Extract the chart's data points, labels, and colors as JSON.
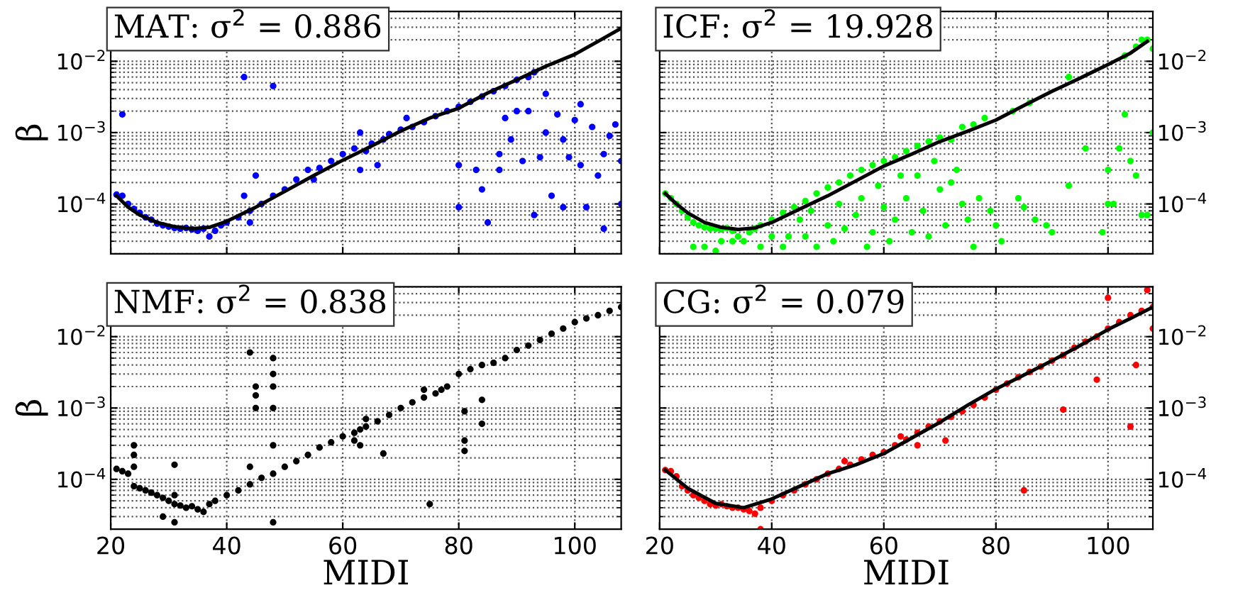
{
  "chart_data": [
    {
      "type": "scatter",
      "title": "MAT: σ$^{2}$ = 0.886",
      "ylabel": "β",
      "log": "y",
      "grid": true,
      "tick_labels": "y",
      "xlim": [
        20,
        108
      ],
      "ylim": [
        2e-05,
        0.05
      ],
      "xticks": [
        {
          "value": 20,
          "label": null
        },
        {
          "value": 40,
          "label": null
        },
        {
          "value": 60,
          "label": null
        },
        {
          "value": 80,
          "label": null
        },
        {
          "value": 100,
          "label": null
        }
      ],
      "yticks": [
        {
          "value": 0.0001,
          "label": "10$^{−4}$"
        },
        {
          "value": 0.001,
          "label": "10$^{−3}$"
        },
        {
          "value": 0.01,
          "label": "10$^{−2}$"
        }
      ],
      "series": [
        {
          "marker": "circle",
          "color": "#0000ff",
          "x": [
            21,
            22,
            23,
            24,
            25,
            26,
            27,
            28,
            29,
            30,
            31,
            32,
            33,
            34,
            35,
            36,
            37,
            38,
            39,
            40,
            42,
            44,
            46,
            48,
            50,
            52,
            54,
            55,
            56,
            58,
            60,
            62,
            63,
            64,
            65,
            66,
            67,
            68,
            70,
            71,
            72,
            74,
            76,
            78,
            80,
            82,
            84,
            86,
            88,
            90,
            92,
            93,
            22,
            43,
            48,
            43,
            45,
            44,
            63,
            80,
            80,
            83,
            84,
            85,
            87,
            87,
            88,
            89,
            90,
            91,
            92,
            93,
            94,
            95,
            95,
            96,
            97,
            98,
            98,
            99,
            100,
            101,
            101,
            102,
            103,
            104,
            105,
            105,
            106,
            107,
            108,
            108
          ],
          "values": [
            0.000135,
            0.00013,
            0.0001,
            8.5e-05,
            7.5e-05,
            6.5e-05,
            6e-05,
            5.3e-05,
            5e-05,
            4.8e-05,
            4.6e-05,
            4.5e-05,
            4.6e-05,
            4.4e-05,
            4.2e-05,
            4.5e-05,
            3.5e-05,
            4.2e-05,
            5e-05,
            5.5e-05,
            6.5e-05,
            8e-05,
            0.0001,
            0.00013,
            0.00016,
            0.00022,
            0.0003,
            0.00022,
            0.00032,
            0.0004,
            0.0005,
            0.0006,
            0.001,
            0.00055,
            0.0007,
            0.00035,
            0.0008,
            0.00095,
            0.0011,
            0.0016,
            0.0012,
            0.0014,
            0.0017,
            0.002,
            0.0023,
            0.0027,
            0.0032,
            0.0038,
            0.0045,
            0.0055,
            0.006,
            0.007,
            0.0018,
            0.006,
            0.0045,
            0.00013,
            0.00025,
            5.5e-05,
            0.0003,
            9e-05,
            0.00035,
            0.0003,
            0.00016,
            5.5e-05,
            0.0005,
            0.0003,
            0.0016,
            0.0008,
            0.002,
            0.0004,
            0.002,
            7e-05,
            0.00045,
            0.001,
            0.0035,
            0.00013,
            0.0018,
            0.0008,
            9e-05,
            0.00045,
            0.0015,
            0.0025,
            0.00035,
            9e-05,
            0.0012,
            0.00025,
            4.5e-05,
            0.0005,
            0.0009,
            0.0013,
            0.0004,
            0.0001
          ]
        },
        {
          "type": "line",
          "color": "#000000",
          "x": [
            21,
            23,
            25,
            28,
            31,
            34,
            37,
            40,
            45,
            50,
            55,
            60,
            65,
            70,
            75,
            80,
            85,
            90,
            95,
            100,
            104,
            108
          ],
          "values": [
            0.00013,
            9e-05,
            7e-05,
            5.5e-05,
            4.8e-05,
            4.5e-05,
            4.7e-05,
            5.7e-05,
            9e-05,
            0.00015,
            0.00025,
            0.00041,
            0.00065,
            0.00105,
            0.0016,
            0.0022,
            0.0036,
            0.0055,
            0.0085,
            0.0125,
            0.019,
            0.029
          ]
        }
      ]
    },
    {
      "type": "scatter",
      "title": "ICF: σ$^{2}$ = 19.928",
      "log": "y",
      "grid": true,
      "tick_labels": "y",
      "xlim": [
        20,
        108
      ],
      "ylim": [
        2e-05,
        0.05
      ],
      "xticks": [
        {
          "value": 20,
          "label": null
        },
        {
          "value": 40,
          "label": null
        },
        {
          "value": 60,
          "label": null
        },
        {
          "value": 80,
          "label": null
        },
        {
          "value": 100,
          "label": null
        }
      ],
      "yticks": [
        {
          "value": 0.0001,
          "label": "10$^{−4}$"
        },
        {
          "value": 0.001,
          "label": "10$^{−3}$"
        },
        {
          "value": 0.01,
          "label": "10$^{−2}$"
        }
      ],
      "series": [
        {
          "marker": "circle",
          "color": "#00ff00",
          "x": [
            21,
            22,
            23,
            24,
            25,
            26,
            27,
            28,
            29,
            30,
            31,
            32,
            33,
            34,
            35,
            36,
            37,
            38,
            40,
            42,
            44,
            46,
            48,
            50,
            52,
            54,
            56,
            58,
            60,
            62,
            64,
            66,
            68,
            70,
            72,
            74,
            76,
            78,
            83,
            86,
            93,
            103,
            105,
            106,
            107,
            108,
            26,
            28,
            30,
            31,
            33,
            38,
            40,
            42,
            43,
            45,
            46,
            47,
            48,
            50,
            51,
            52,
            53,
            55,
            56,
            57,
            58,
            59,
            60,
            61,
            62,
            63,
            64,
            65,
            66,
            67,
            68,
            69,
            70,
            71,
            72,
            73,
            74,
            75,
            76,
            77,
            79,
            80,
            81,
            84,
            85,
            87,
            89,
            90,
            93,
            96,
            99,
            100,
            100,
            101,
            102,
            103,
            104,
            105,
            106,
            107,
            108
          ],
          "values": [
            0.00014,
            0.00012,
            0.0001,
            8e-05,
            6.5e-05,
            5.5e-05,
            5e-05,
            4.7e-05,
            4.5e-05,
            4.5e-05,
            4.4e-05,
            4.6e-05,
            4.2e-05,
            3.5e-05,
            3e-05,
            4e-05,
            4.5e-05,
            5e-05,
            6e-05,
            7.5e-05,
            9e-05,
            0.00011,
            0.00014,
            0.00017,
            0.0002,
            0.00025,
            0.0003,
            0.00035,
            0.0004,
            0.00045,
            0.00055,
            0.00065,
            0.00075,
            0.00085,
            0.0008,
            0.0012,
            0.0013,
            0.0016,
            0.002,
            0.0026,
            0.006,
            0.012,
            0.016,
            0.02,
            0.02,
            0.015,
            2.5e-05,
            2.5e-05,
            2.2e-05,
            3e-05,
            3e-05,
            2.5e-05,
            3.5e-05,
            2.5e-05,
            3.5e-05,
            6e-05,
            3.5e-05,
            8e-05,
            2.5e-05,
            5e-05,
            3e-05,
            0.0001,
            4.5e-05,
            7e-05,
            0.00012,
            2.5e-05,
            4e-05,
            0.00018,
            9e-05,
            3e-05,
            6e-05,
            0.00025,
            0.00012,
            4e-05,
            0.00025,
            8e-05,
            3.5e-05,
            0.0004,
            0.00016,
            5e-05,
            0.0002,
            0.0003,
            0.0001,
            6e-05,
            2.5e-05,
            0.00012,
            8e-05,
            5e-05,
            3e-05,
            0.00012,
            9e-05,
            6e-05,
            5e-05,
            4e-05,
            0.00018,
            0.0006,
            4e-05,
            0.0001,
            0.0003,
            0.0001,
            0.0006,
            0.0018,
            0.0004,
            0.00025,
            7e-05,
            7e-05,
            0.001
          ]
        },
        {
          "type": "line",
          "color": "#000000",
          "x": [
            21,
            23,
            25,
            28,
            31,
            34,
            37,
            40,
            45,
            50,
            55,
            60,
            65,
            70,
            75,
            80,
            85,
            90,
            95,
            100,
            104,
            107
          ],
          "values": [
            0.00014,
            0.0001,
            7.5e-05,
            5.5e-05,
            4.7e-05,
            4.4e-05,
            4.6e-05,
            5.5e-05,
            8.5e-05,
            0.00013,
            0.00021,
            0.00034,
            0.0005,
            0.00075,
            0.00105,
            0.0015,
            0.0024,
            0.0038,
            0.0058,
            0.009,
            0.013,
            0.019
          ]
        }
      ]
    },
    {
      "type": "scatter",
      "title": "NMF: σ$^{2}$ = 0.838",
      "xlabel": "MIDI",
      "ylabel": "β",
      "log": "y",
      "grid": true,
      "xlim": [
        20,
        108
      ],
      "ylim": [
        2e-05,
        0.05
      ],
      "xticks": [
        20,
        40,
        60,
        80,
        100
      ],
      "yticks": [
        {
          "value": 0.0001,
          "label": "10$^{−4}$"
        },
        {
          "value": 0.001,
          "label": "10$^{−3}$"
        },
        {
          "value": 0.01,
          "label": "10$^{−2}$"
        }
      ],
      "series": [
        {
          "marker": "circle",
          "color": "#000000",
          "x": [
            21,
            22,
            23,
            24,
            25,
            26,
            27,
            28,
            29,
            30,
            31,
            32,
            33,
            34,
            35,
            36,
            37,
            38,
            40,
            42,
            44,
            46,
            48,
            50,
            52,
            54,
            56,
            58,
            60,
            62,
            64,
            66,
            68,
            70,
            72,
            74,
            76,
            78,
            80,
            82,
            84,
            86,
            88,
            90,
            92,
            94,
            96,
            98,
            100,
            102,
            104,
            106,
            108,
            24,
            24,
            24,
            31,
            31,
            31,
            29,
            44,
            45,
            45,
            45,
            48,
            48,
            48,
            48,
            48,
            48,
            44,
            62,
            63,
            63,
            64,
            67,
            74,
            75,
            77,
            81,
            81,
            81,
            84,
            84
          ],
          "values": [
            0.00014,
            0.00013,
            0.00012,
            8e-05,
            7.5e-05,
            7e-05,
            6.5e-05,
            6e-05,
            5.5e-05,
            5e-05,
            4.5e-05,
            4.3e-05,
            4e-05,
            4.2e-05,
            3.8e-05,
            3.5e-05,
            4.5e-05,
            5e-05,
            6e-05,
            7e-05,
            8.5e-05,
            0.000105,
            0.00012,
            0.00015,
            0.00018,
            0.00022,
            0.00028,
            0.00033,
            0.0004,
            0.00045,
            0.00055,
            0.00065,
            0.0008,
            0.001,
            0.0012,
            0.0014,
            0.0016,
            0.002,
            0.003,
            0.0035,
            0.004,
            0.0043,
            0.005,
            0.0065,
            0.0075,
            0.009,
            0.011,
            0.013,
            0.016,
            0.018,
            0.02,
            0.023,
            0.026,
            0.00015,
            0.00022,
            0.0003,
            2.5e-05,
            6e-05,
            0.00016,
            3e-05,
            0.006,
            0.001,
            0.0015,
            0.002,
            2.5e-05,
            0.0003,
            0.001,
            0.002,
            0.003,
            0.005,
            0.00015,
            0.00035,
            0.0005,
            0.0003,
            0.0007,
            0.00023,
            0.0018,
            4.5e-05,
            0.0018,
            0.0009,
            0.00035,
            0.00025,
            0.0013,
            0.0006
          ]
        }
      ]
    },
    {
      "type": "scatter",
      "title": "CG: σ$^{2}$ = 0.079",
      "xlabel": "MIDI",
      "log": "y",
      "grid": true,
      "xlim": [
        20,
        108
      ],
      "ylim": [
        2e-05,
        0.05
      ],
      "xticks": [
        20,
        40,
        60,
        80,
        100
      ],
      "yticks": [
        {
          "value": 0.0001,
          "label": "10$^{−4}$"
        },
        {
          "value": 0.001,
          "label": "10$^{−3}$"
        },
        {
          "value": 0.01,
          "label": "10$^{−2}$"
        }
      ],
      "series": [
        {
          "marker": "circle",
          "color": "#ff0000",
          "x": [
            21,
            22,
            23,
            24,
            25,
            26,
            27,
            28,
            29,
            30,
            31,
            32,
            33,
            34,
            35,
            36,
            37,
            38,
            40,
            42,
            44,
            46,
            48,
            50,
            52,
            53,
            54,
            56,
            58,
            60,
            62,
            63,
            64,
            66,
            68,
            70,
            71,
            72,
            74,
            76,
            78,
            80,
            82,
            84,
            86,
            88,
            90,
            92,
            94,
            96,
            98,
            100,
            102,
            104,
            106,
            108,
            38,
            66,
            85,
            92,
            98,
            104,
            105,
            108,
            107,
            100
          ],
          "values": [
            0.000135,
            0.00013,
            0.00011,
            8e-05,
            7e-05,
            6e-05,
            5.5e-05,
            5e-05,
            4.5e-05,
            4.3e-05,
            4.5e-05,
            4.2e-05,
            4e-05,
            4e-05,
            3.8e-05,
            3.6e-05,
            3.3e-05,
            4e-05,
            5e-05,
            6e-05,
            7e-05,
            8.5e-05,
            0.0001,
            0.00012,
            0.00014,
            0.00018,
            0.00016,
            0.00019,
            0.00022,
            0.00024,
            0.0003,
            0.0004,
            0.00036,
            0.00045,
            0.00055,
            0.00065,
            0.00035,
            0.00075,
            0.0009,
            0.0011,
            0.0014,
            0.0018,
            0.0022,
            0.0027,
            0.0032,
            0.0038,
            0.0046,
            0.0055,
            0.007,
            0.0085,
            0.01,
            0.013,
            0.016,
            0.02,
            0.023,
            0.026,
            2e-05,
            0.0003,
            7e-05,
            0.00095,
            0.0025,
            0.00055,
            0.004,
            0.013,
            0.045,
            0.035
          ]
        },
        {
          "type": "line",
          "color": "#000000",
          "x": [
            21,
            25,
            30,
            35,
            40,
            45,
            50,
            55,
            60,
            65,
            70,
            75,
            80,
            85,
            90,
            95,
            100,
            104,
            108
          ],
          "values": [
            0.000135,
            7.5e-05,
            4.6e-05,
            4e-05,
            5.3e-05,
            8e-05,
            0.00012,
            0.00016,
            0.00023,
            0.00038,
            0.00063,
            0.0011,
            0.00185,
            0.0029,
            0.0046,
            0.0075,
            0.0126,
            0.018,
            0.026
          ]
        }
      ]
    }
  ]
}
